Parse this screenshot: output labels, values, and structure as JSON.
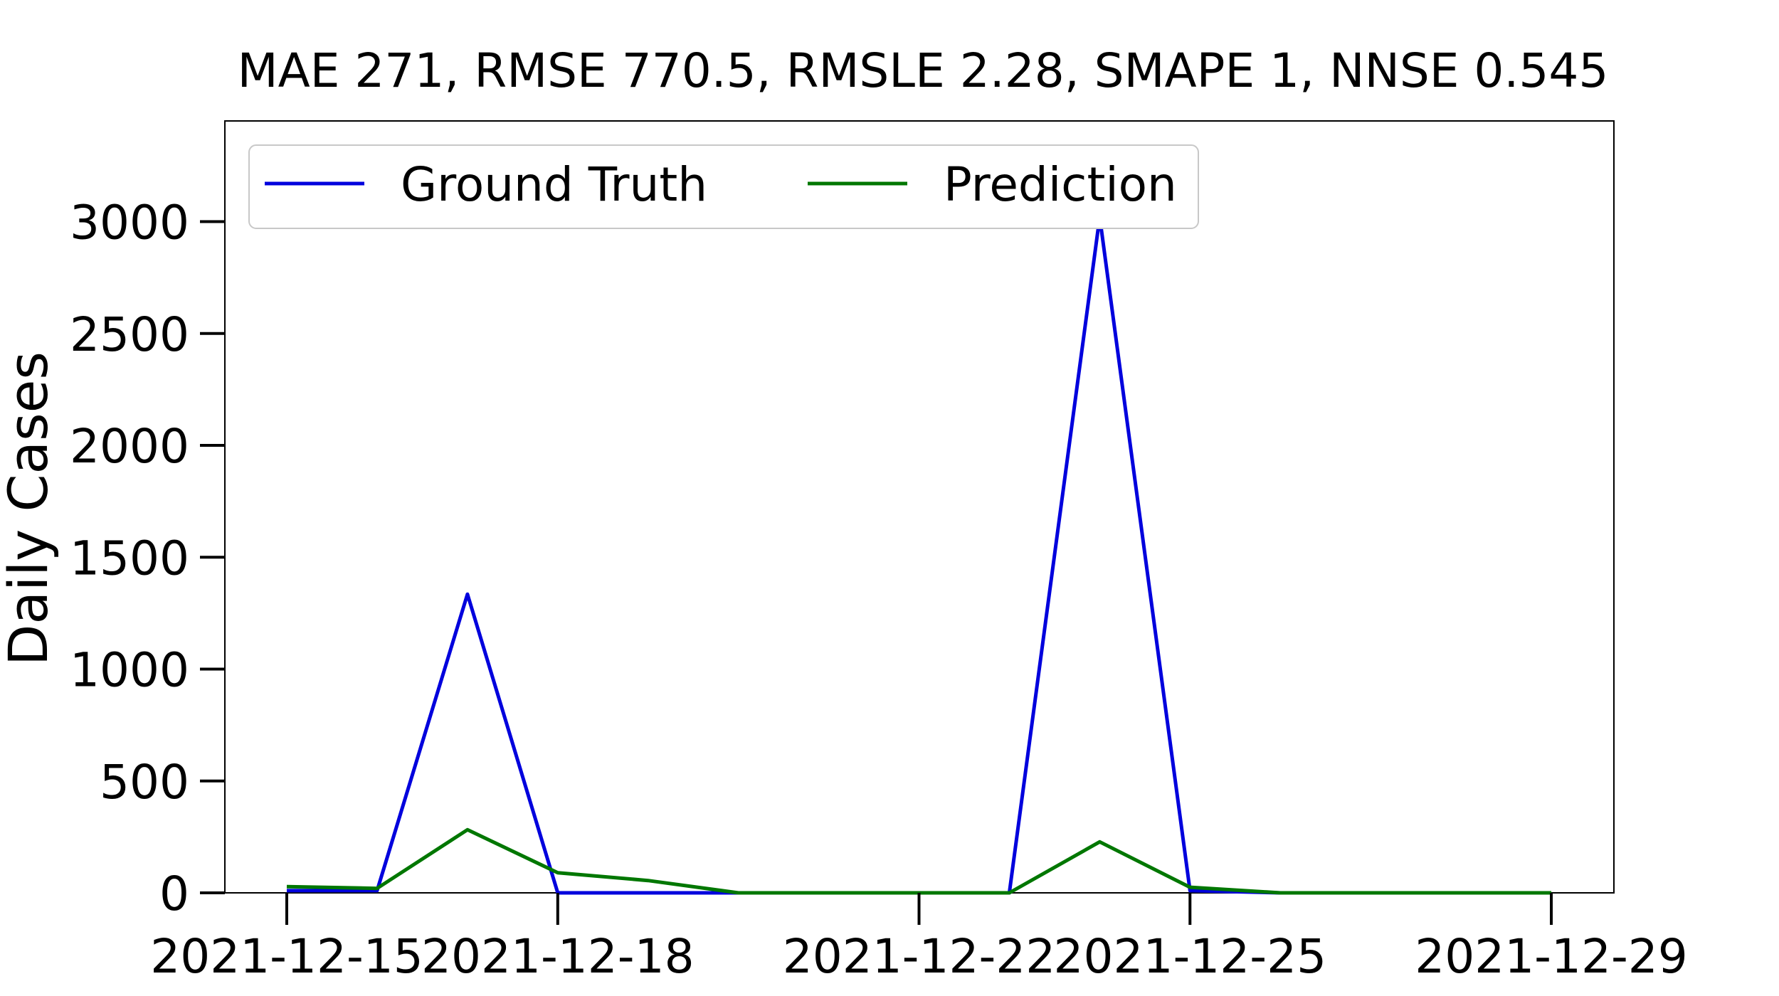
{
  "chart_data": {
    "type": "line",
    "title": "MAE 271, RMSE 770.5, RMSLE 2.28, SMAPE 1, NNSE 0.545",
    "xlabel": "",
    "ylabel": "Daily Cases",
    "x": [
      "2021-12-15",
      "2021-12-16",
      "2021-12-17",
      "2021-12-18",
      "2021-12-19",
      "2021-12-20",
      "2021-12-21",
      "2021-12-22",
      "2021-12-23",
      "2021-12-24",
      "2021-12-25",
      "2021-12-26",
      "2021-12-27",
      "2021-12-28",
      "2021-12-29"
    ],
    "x_ticks": [
      "2021-12-15",
      "2021-12-18",
      "2021-12-22",
      "2021-12-25",
      "2021-12-29"
    ],
    "y_ticks": [
      0,
      500,
      1000,
      1500,
      2000,
      2500,
      3000
    ],
    "ylim": [
      0,
      3450
    ],
    "grid": false,
    "legend_position": "top-left",
    "series": [
      {
        "name": "Ground Truth",
        "color": "#0000dd",
        "values": [
          10,
          10,
          1335,
          0,
          0,
          0,
          0,
          0,
          0,
          3020,
          10,
          0,
          0,
          0,
          0
        ]
      },
      {
        "name": "Prediction",
        "color": "#007700",
        "values": [
          28,
          20,
          282,
          90,
          55,
          0,
          0,
          0,
          0,
          228,
          25,
          0,
          0,
          0,
          0
        ]
      }
    ]
  }
}
